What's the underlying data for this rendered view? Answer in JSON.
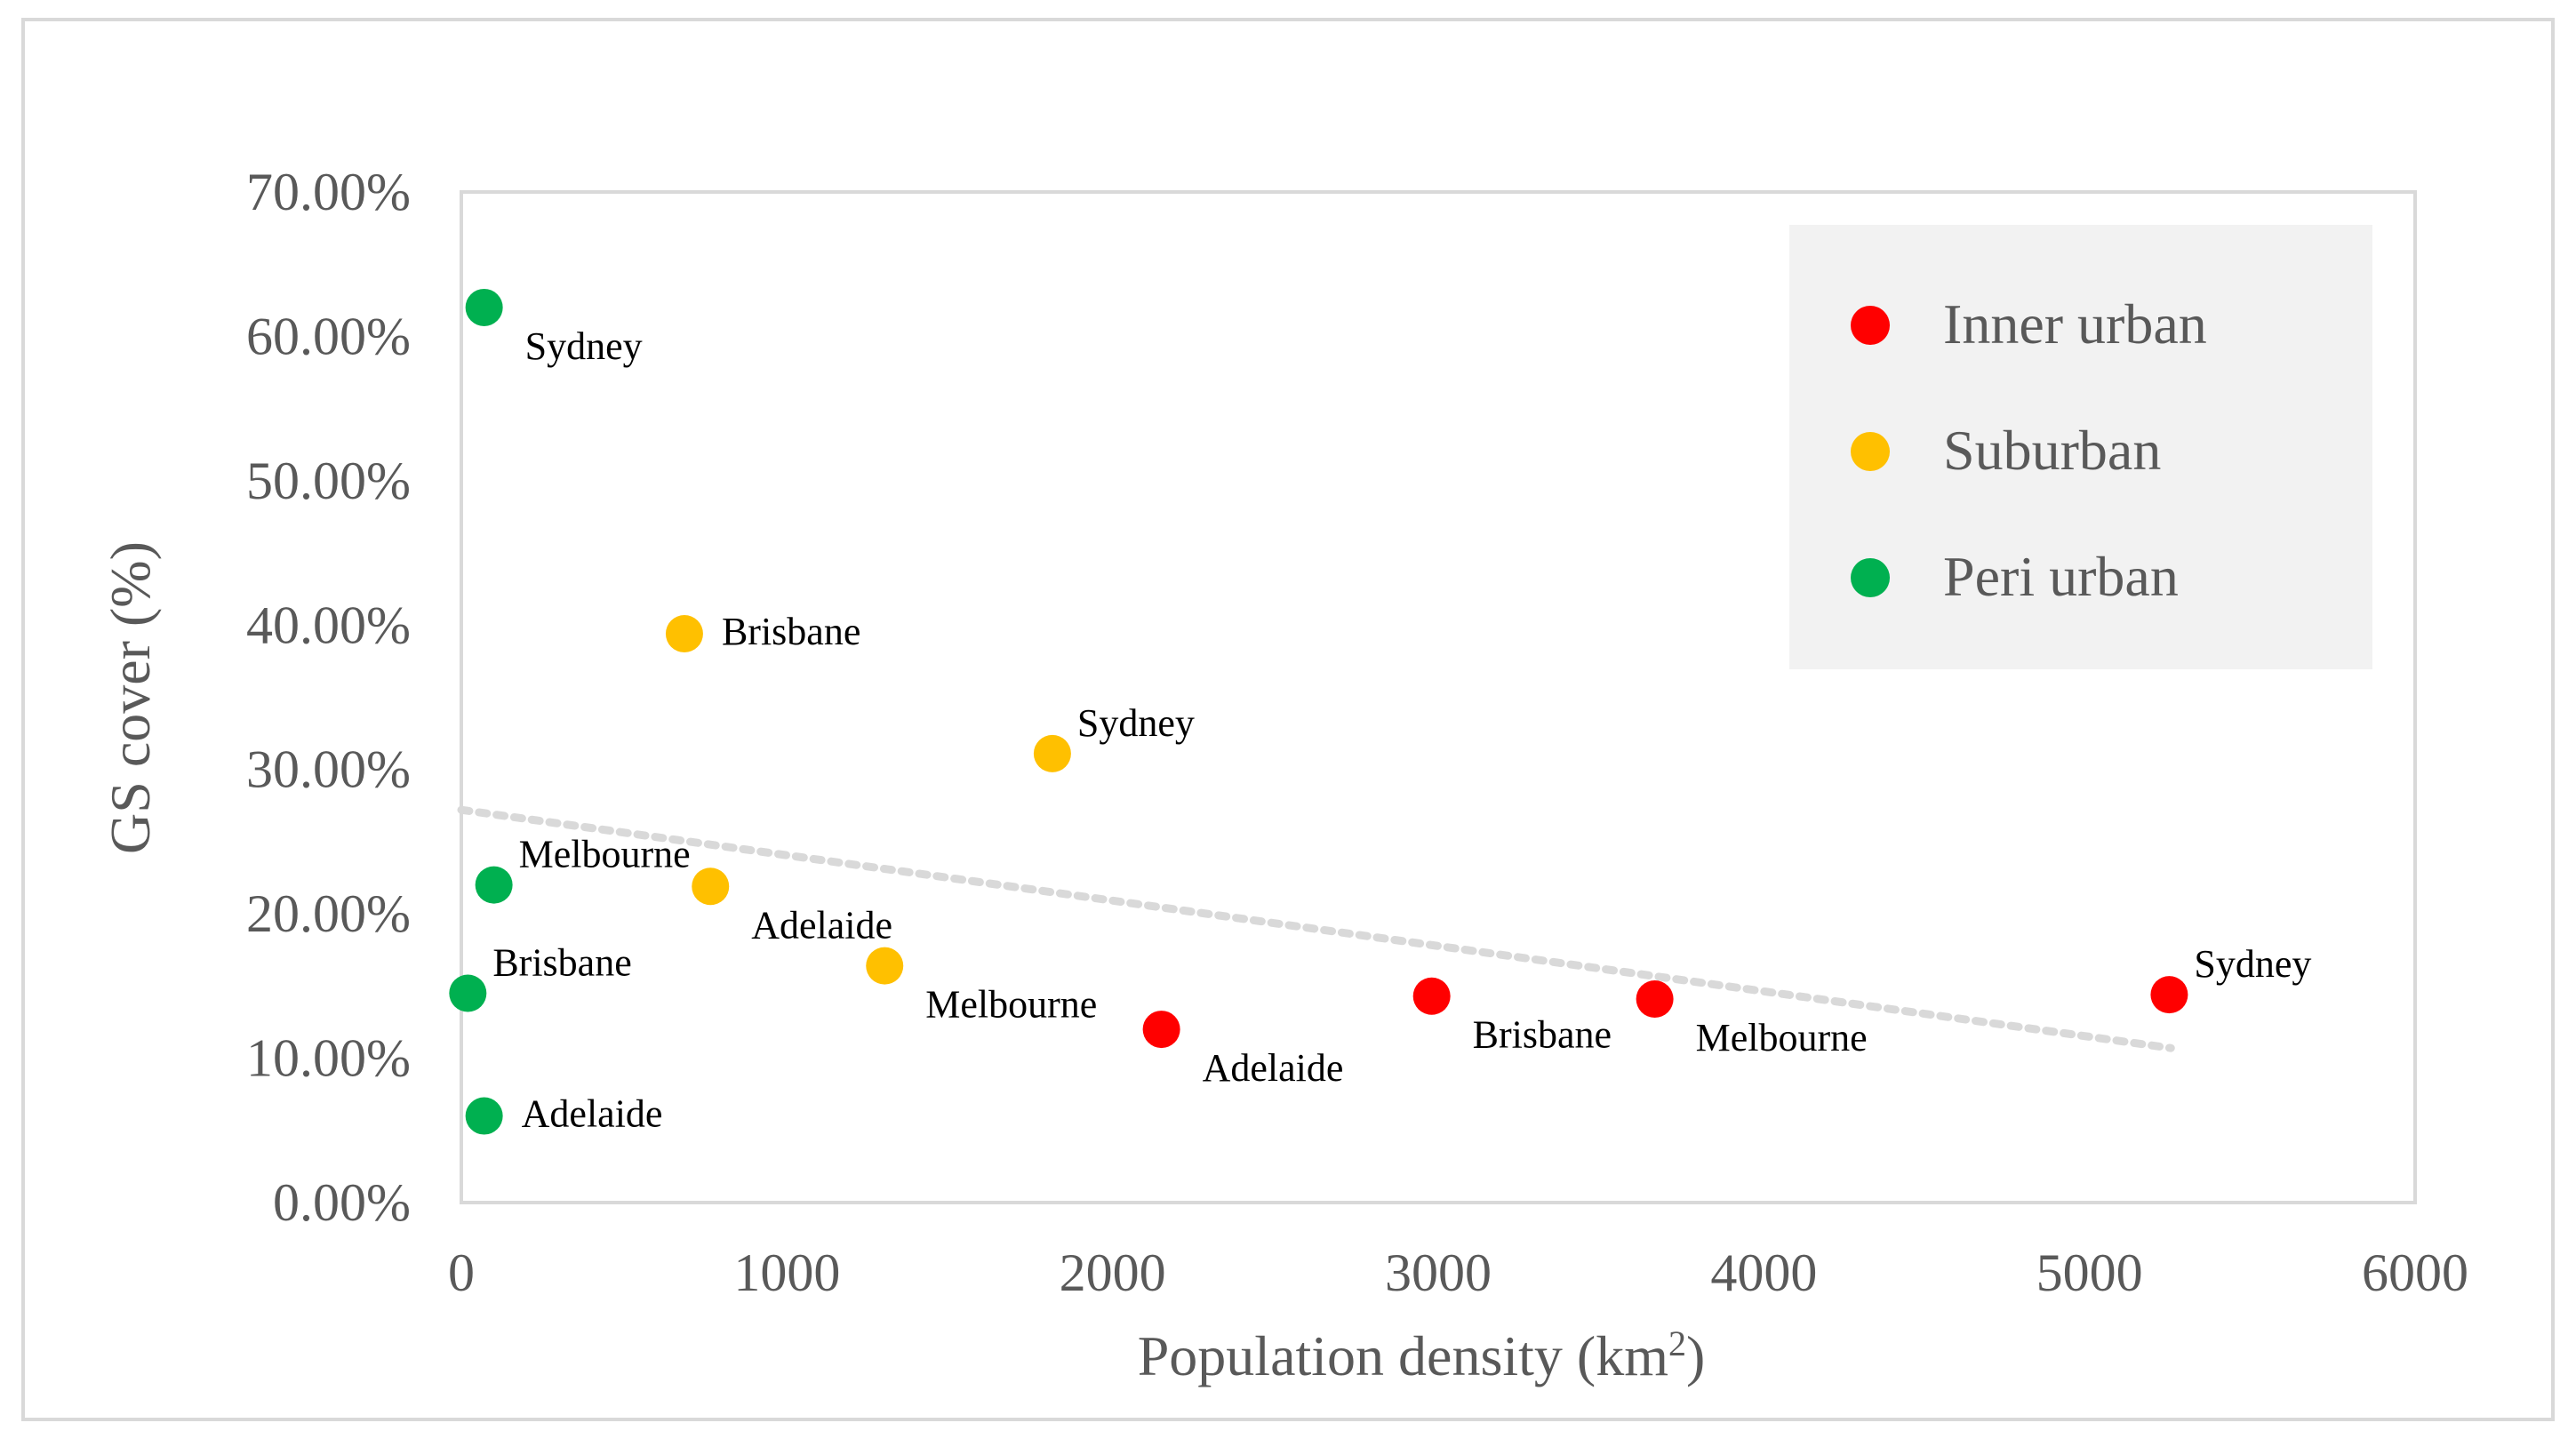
{
  "chart_data": {
    "type": "scatter",
    "xlabel": "Population density (km",
    "xlabel_sup": "2",
    "xlabel_close": ")",
    "ylabel": "GS cover (%)",
    "xlim": [
      0,
      6000
    ],
    "ylim": [
      0,
      0.7
    ],
    "x_ticks": [
      0,
      1000,
      2000,
      3000,
      4000,
      5000,
      6000
    ],
    "x_tick_labels": [
      "0",
      "1000",
      "2000",
      "3000",
      "4000",
      "5000",
      "6000"
    ],
    "y_ticks": [
      0,
      0.1,
      0.2,
      0.3,
      0.4,
      0.5,
      0.6,
      0.7
    ],
    "y_tick_labels": [
      "0.00%",
      "10.00%",
      "20.00%",
      "30.00%",
      "40.00%",
      "50.00%",
      "60.00%",
      "70.00%"
    ],
    "grid": false,
    "legend_position": "top-right",
    "trendline": {
      "style": "dotted",
      "color": "#d9d9d9",
      "x": [
        0,
        5250
      ],
      "y": [
        0.272,
        0.107
      ]
    },
    "series": [
      {
        "name": "Inner urban",
        "color": "#ff0000",
        "points": [
          {
            "label": "Adelaide",
            "x": 2150,
            "y": 0.12,
            "label_pos": "below-right"
          },
          {
            "label": "Brisbane",
            "x": 2980,
            "y": 0.143,
            "label_pos": "below-right"
          },
          {
            "label": "Melbourne",
            "x": 3665,
            "y": 0.141,
            "label_pos": "below-right"
          },
          {
            "label": "Sydney",
            "x": 5245,
            "y": 0.144,
            "label_pos": "above-right"
          }
        ]
      },
      {
        "name": "Suburban",
        "color": "#ffc000",
        "points": [
          {
            "label": "Brisbane",
            "x": 685,
            "y": 0.394,
            "label_pos": "right"
          },
          {
            "label": "Adelaide",
            "x": 765,
            "y": 0.219,
            "label_pos": "below-right"
          },
          {
            "label": "Melbourne",
            "x": 1300,
            "y": 0.164,
            "label_pos": "below-right"
          },
          {
            "label": "Sydney",
            "x": 1815,
            "y": 0.311,
            "label_pos": "above-right"
          }
        ]
      },
      {
        "name": "Peri urban",
        "color": "#00b050",
        "points": [
          {
            "label": "Sydney",
            "x": 70,
            "y": 0.62,
            "label_pos": "below-right"
          },
          {
            "label": "Melbourne",
            "x": 100,
            "y": 0.22,
            "label_pos": "above-right"
          },
          {
            "label": "Brisbane",
            "x": 20,
            "y": 0.145,
            "label_pos": "above-right"
          },
          {
            "label": "Adelaide",
            "x": 70,
            "y": 0.06,
            "label_pos": "right"
          }
        ]
      }
    ]
  }
}
